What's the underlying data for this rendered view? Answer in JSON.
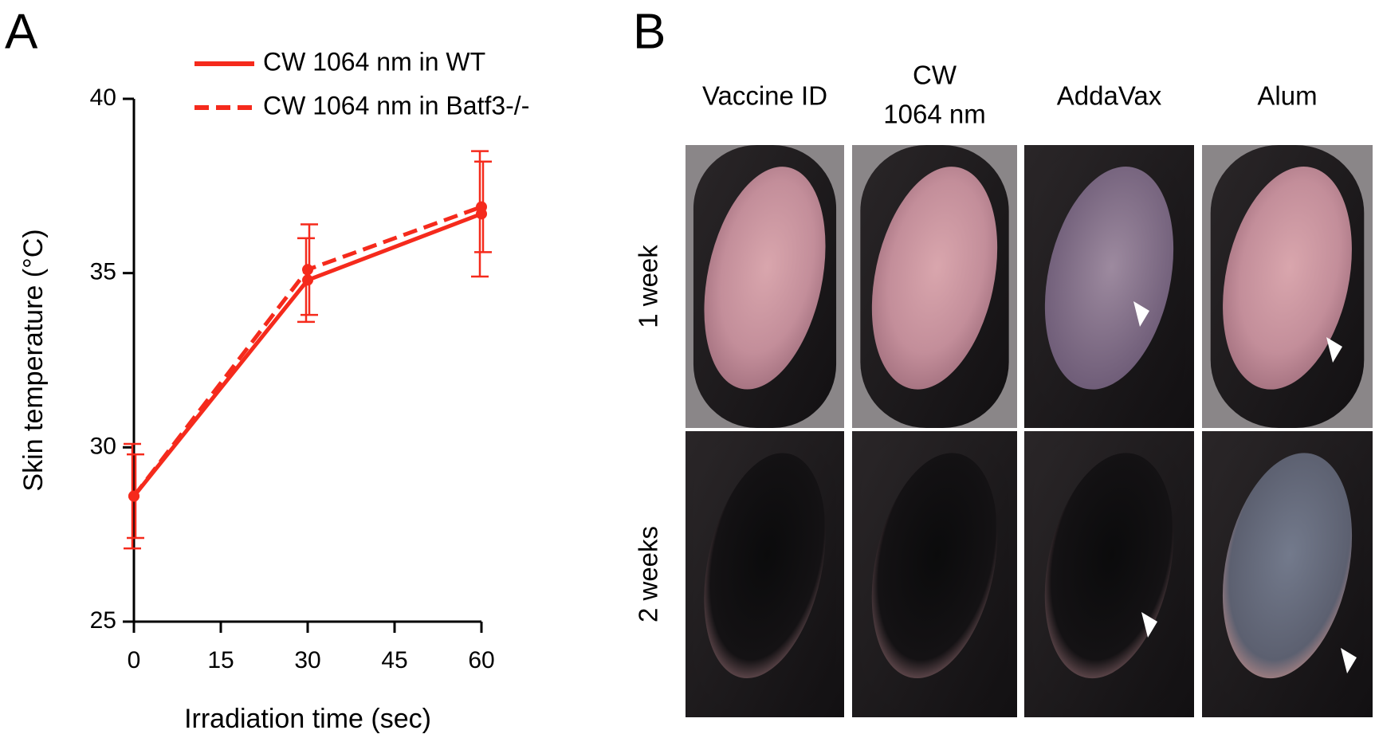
{
  "panel_labels": [
    "A",
    "B"
  ],
  "chart_data": {
    "type": "line",
    "xlabel": "Irradiation time (sec)",
    "ylabel": "Skin temperature (°C)",
    "x": [
      0,
      30,
      60
    ],
    "series": [
      {
        "name": "CW 1064 nm in WT",
        "color": "#f52a1c",
        "line_style": "solid",
        "values": [
          28.6,
          34.8,
          36.7
        ],
        "errors": [
          1.5,
          1.2,
          1.8
        ]
      },
      {
        "name": "CW 1064 nm in Batf3-/-",
        "color": "#f52a1c",
        "line_style": "dashed",
        "values": [
          28.6,
          35.1,
          36.9
        ],
        "errors": [
          1.2,
          1.3,
          1.3
        ]
      }
    ],
    "xlim": [
      0,
      60
    ],
    "xticks": [
      0,
      15,
      30,
      45,
      60
    ],
    "ylim": [
      25,
      40
    ],
    "yticks": [
      25,
      30,
      35,
      40
    ],
    "grid": false
  },
  "photo_grid": {
    "columns": [
      [
        "Vaccine ID"
      ],
      [
        "CW",
        "1064 nm"
      ],
      [
        "AddaVax"
      ],
      [
        "Alum"
      ]
    ],
    "rows": [
      "1 week",
      "2 weeks"
    ]
  }
}
